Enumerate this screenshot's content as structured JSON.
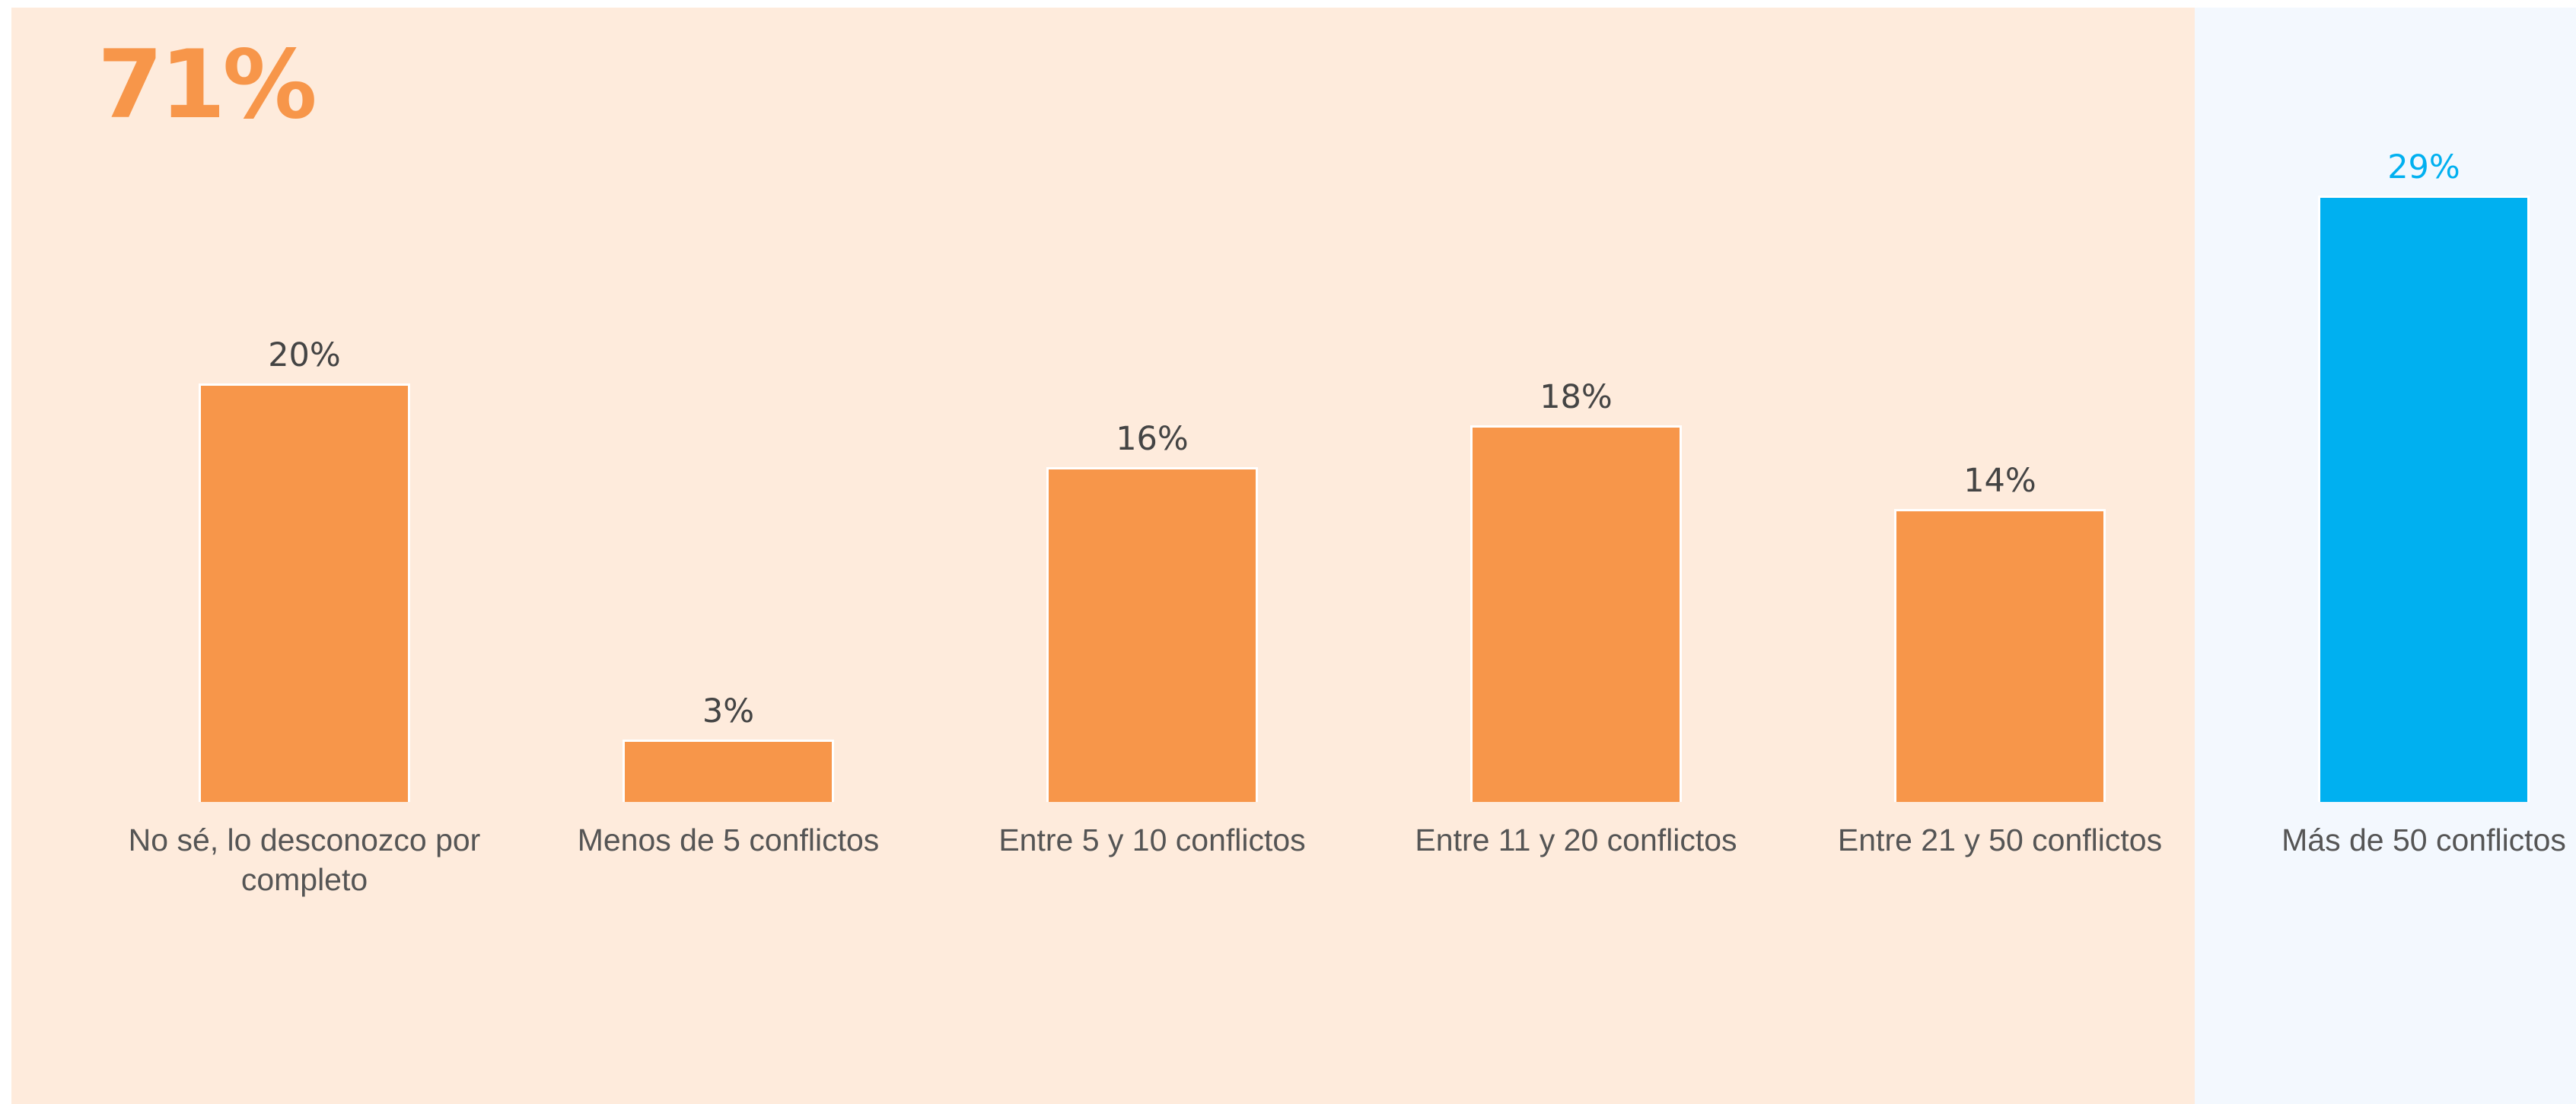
{
  "chart_data": {
    "type": "bar",
    "annotation": "71%",
    "categories": [
      "No sé, lo desconozco por completo",
      "Menos de 5 conflictos",
      "Entre 5 y 10 conflictos",
      "Entre 11 y 20 conflictos",
      "Entre 21 y 50 conflictos",
      "Más de 50 conflictos"
    ],
    "values": [
      20,
      3,
      16,
      18,
      14,
      29
    ],
    "value_labels": [
      "20%",
      "3%",
      "16%",
      "18%",
      "14%",
      "29%"
    ],
    "colors": [
      "#f7964a",
      "#f7964a",
      "#f7964a",
      "#f7964a",
      "#f7964a",
      "#00b0f0"
    ],
    "value_label_colors": [
      "#444444",
      "#444444",
      "#444444",
      "#444444",
      "#444444",
      "#00b0f0"
    ]
  }
}
